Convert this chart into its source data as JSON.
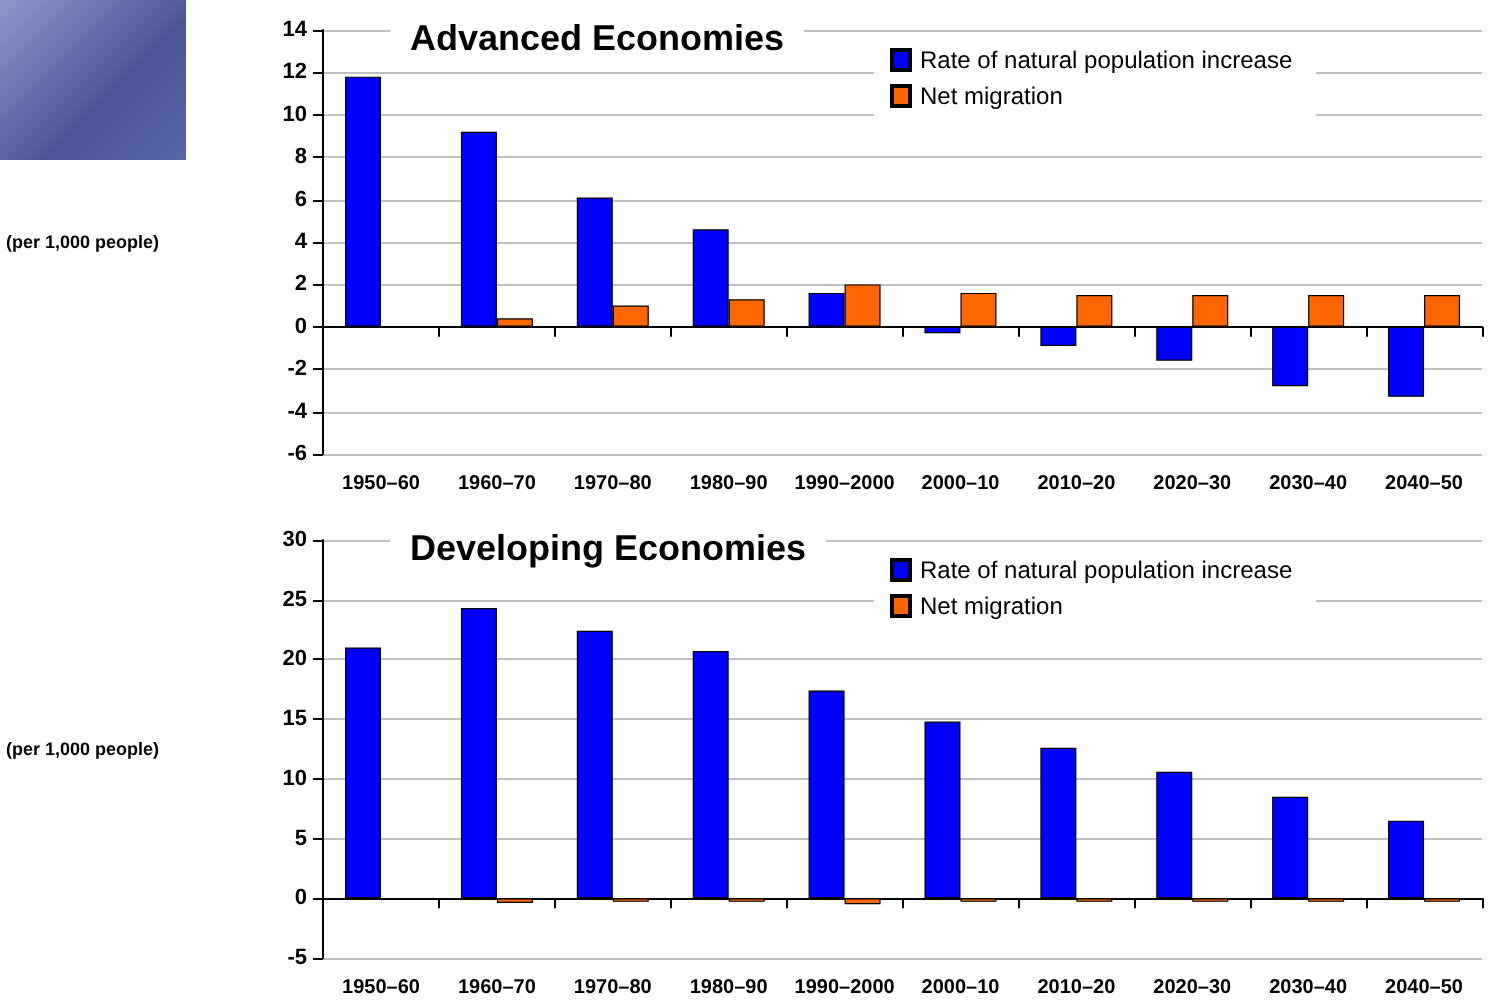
{
  "chart_data": [
    {
      "type": "bar",
      "title": "Advanced Economies",
      "ylabel": "(per 1,000 people)",
      "categories": [
        "1950–60",
        "1960–70",
        "1970–80",
        "1980–90",
        "1990–2000",
        "2000–10",
        "2010–20",
        "2020–30",
        "2030–40",
        "2040–50"
      ],
      "series": [
        {
          "name": "Rate of natural population increase",
          "color": "#0000ff",
          "values": [
            11.8,
            9.2,
            6.1,
            4.6,
            1.6,
            -0.3,
            -0.9,
            -1.6,
            -2.8,
            -3.3
          ]
        },
        {
          "name": "Net migration",
          "color": "#ff6600",
          "values": [
            null,
            0.4,
            1.0,
            1.3,
            2.0,
            1.6,
            1.5,
            1.5,
            1.5,
            1.5
          ]
        }
      ],
      "ylim": [
        -6,
        14
      ],
      "yticks": [
        -6,
        -4,
        -2,
        0,
        2,
        4,
        6,
        8,
        10,
        12,
        14
      ],
      "grid": "y",
      "legend": "top right"
    },
    {
      "type": "bar",
      "title": "Developing Economies",
      "ylabel": "(per 1,000 people)",
      "categories": [
        "1950–60",
        "1960–70",
        "1970–80",
        "1980–90",
        "1990–2000",
        "2000–10",
        "2010–20",
        "2020–30",
        "2030–40",
        "2040–50"
      ],
      "series": [
        {
          "name": "Rate of natural population increase",
          "color": "#0000ff",
          "values": [
            21,
            24.3,
            22.4,
            20.7,
            17.4,
            14.8,
            12.6,
            10.6,
            8.5,
            6.5
          ]
        },
        {
          "name": "Net migration",
          "color": "#ff6600",
          "values": [
            null,
            -0.4,
            -0.3,
            -0.3,
            -0.5,
            -0.3,
            -0.3,
            -0.3,
            -0.3,
            -0.3
          ]
        }
      ],
      "ylim": [
        -5,
        30
      ],
      "yticks": [
        -5,
        0,
        5,
        10,
        15,
        20,
        25,
        30
      ],
      "grid": "y",
      "legend": "top right"
    }
  ]
}
